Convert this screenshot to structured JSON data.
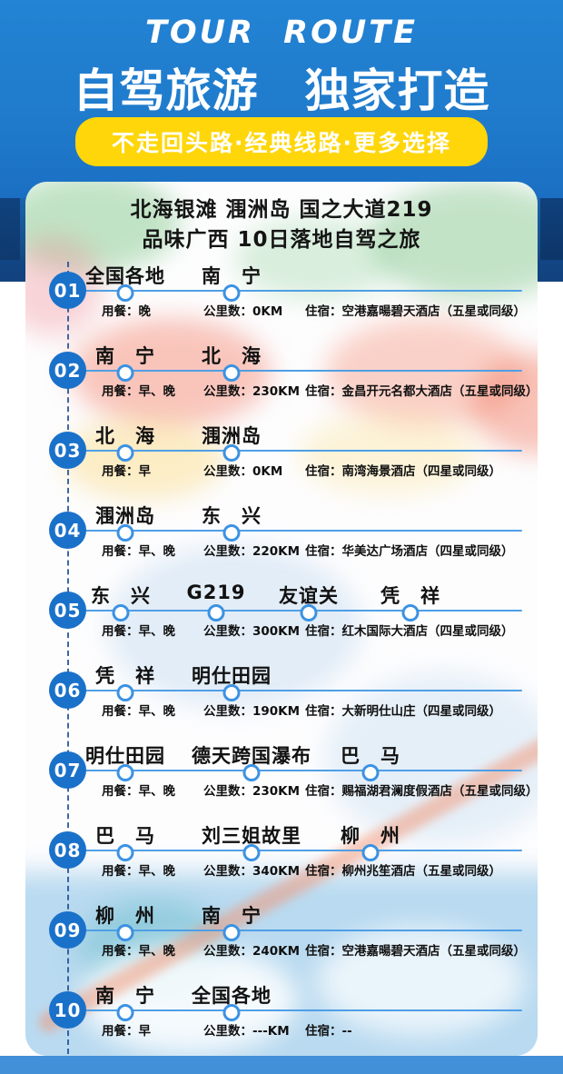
{
  "colors": {
    "hero_blue": "#2383d4",
    "skyline_navy": "#123e7a",
    "badge_blue": "#1a71ca",
    "route_line_blue": "#4f9fe6",
    "node_border_blue": "#3c92e2",
    "dashed_rail_blue": "#1e4e94",
    "pill_yellow": "#ffd60a",
    "bottom_band_blue": "#4190d8",
    "text_dark": "#111111"
  },
  "header": {
    "eyebrow": "TOUR ROUTE",
    "title": "自驾旅游　独家打造",
    "tagline": "不走回头路·经典线路·更多选择"
  },
  "card": {
    "title_line1": "北海银滩 涠洲岛 国之大道219",
    "title_line2": "品味广西 10日落地自驾之旅",
    "field_labels": {
      "meal": "用餐：",
      "distance": "公里数：",
      "lodging": "住宿："
    },
    "days": [
      {
        "no": "01",
        "stops": [
          "全国各地",
          "南　宁"
        ],
        "meal": "晚",
        "distance": "0KM",
        "lodging": "空港嘉暘碧天酒店（五星或同级）"
      },
      {
        "no": "02",
        "stops": [
          "南　宁",
          "北　海"
        ],
        "meal": "早、晚",
        "distance": "230KM",
        "lodging": "金昌开元名都大酒店（五星或同级）"
      },
      {
        "no": "03",
        "stops": [
          "北　海",
          "涠洲岛"
        ],
        "meal": "早",
        "distance": "0KM",
        "lodging": "南湾海景酒店（四星或同级）"
      },
      {
        "no": "04",
        "stops": [
          "涠洲岛",
          "东　兴"
        ],
        "meal": "早、晚",
        "distance": "220KM",
        "lodging": "华美达广场酒店（四星或同级）"
      },
      {
        "no": "05",
        "stops": [
          "东　兴",
          "G219",
          "友谊关",
          "凭　祥"
        ],
        "meal": "早、晚",
        "distance": "300KM",
        "lodging": "红木国际大酒店（四星或同级）"
      },
      {
        "no": "06",
        "stops": [
          "凭　祥",
          "明仕田园"
        ],
        "meal": "早、晚",
        "distance": "190KM",
        "lodging": "大新明仕山庄（四星或同级）"
      },
      {
        "no": "07",
        "stops": [
          "明仕田园",
          "德天跨国瀑布",
          "巴　马"
        ],
        "meal": "早、晚",
        "distance": "230KM",
        "lodging": "赐福湖君澜度假酒店（五星或同级）"
      },
      {
        "no": "08",
        "stops": [
          "巴　马",
          "刘三姐故里",
          "柳　州"
        ],
        "meal": "早、晚",
        "distance": "340KM",
        "lodging": "柳州兆笙酒店（五星或同级）"
      },
      {
        "no": "09",
        "stops": [
          "柳　州",
          "南　宁"
        ],
        "meal": "早、晚",
        "distance": "240KM",
        "lodging": "空港嘉暘碧天酒店（五星或同级）"
      },
      {
        "no": "10",
        "stops": [
          "南　宁",
          "全国各地"
        ],
        "meal": "早",
        "distance": "---KM",
        "lodging": "--"
      }
    ]
  }
}
